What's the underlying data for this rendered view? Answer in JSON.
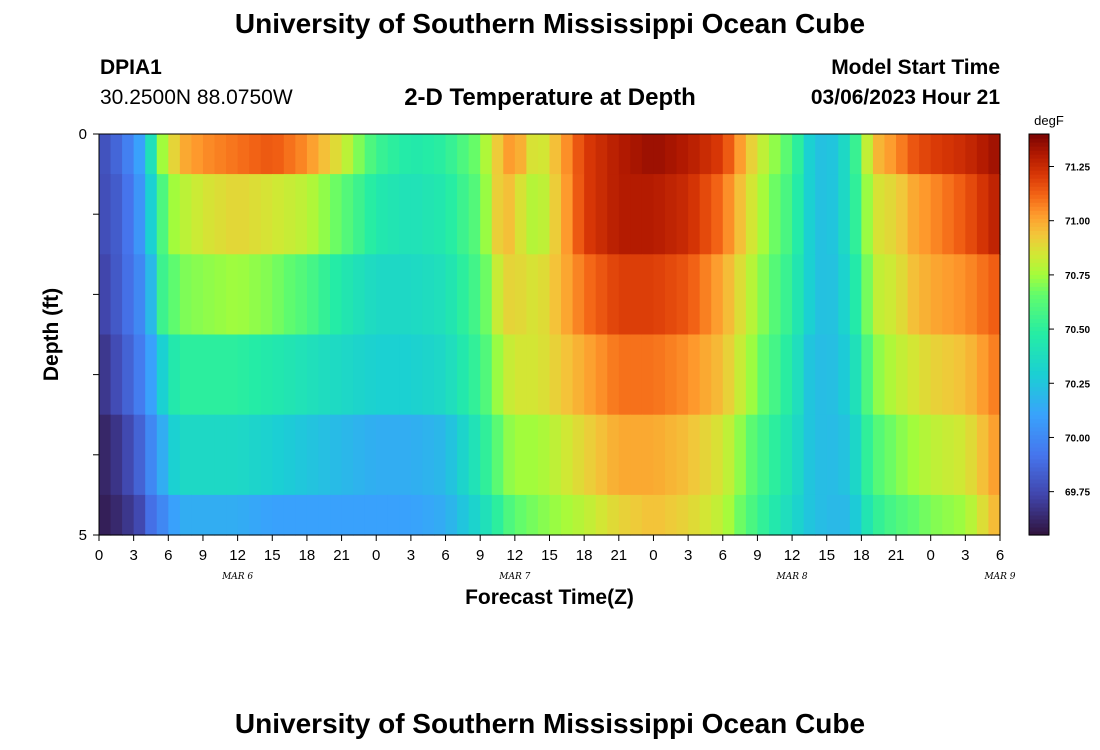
{
  "header": {
    "title": "University of Southern Mississippi Ocean Cube",
    "station_id": "DPIA1",
    "station_coords": "30.2500N  88.0750W",
    "plot_title": "2-D Temperature at Depth",
    "model_start_label": "Model Start Time",
    "model_start_value": "03/06/2023 Hour 21"
  },
  "footer": {
    "title": "University of Southern Mississippi Ocean Cube"
  },
  "chart_data": {
    "type": "heatmap",
    "title": "2-D Temperature at Depth",
    "xlabel": "Forecast Time(Z)",
    "ylabel": "Depth (ft)",
    "y_ticks": [
      "0",
      "5"
    ],
    "ylim": [
      0,
      5
    ],
    "x_tick_labels": [
      "0",
      "3",
      "6",
      "9",
      "12",
      "15",
      "18",
      "21",
      "0",
      "3",
      "6",
      "9",
      "12",
      "15",
      "18",
      "21",
      "0",
      "3",
      "6",
      "9",
      "12",
      "15",
      "18",
      "21",
      "0",
      "3",
      "6"
    ],
    "day_labels": [
      {
        "label": "MAR 6",
        "hour": 12
      },
      {
        "label": "MAR 7",
        "hour": 36
      },
      {
        "label": "MAR 8",
        "hour": 60
      },
      {
        "label": "MAR 9",
        "hour": 78
      }
    ],
    "x_hours_total": 78,
    "depth_levels": 5,
    "colorbar": {
      "unit": "degF",
      "ticks": [
        "69.75",
        "70.00",
        "70.25",
        "70.50",
        "70.75",
        "71.00",
        "71.25"
      ],
      "range": [
        69.55,
        71.4
      ]
    },
    "series": [
      {
        "hours": [
          0,
          2,
          3.5,
          4.5,
          5.5,
          6.5,
          7.5,
          9,
          12,
          15,
          18,
          21,
          24,
          27,
          30,
          33,
          35,
          36,
          38,
          42,
          45,
          48,
          51,
          54,
          57,
          60,
          61.5,
          63,
          65,
          67,
          69,
          70.5,
          72,
          75,
          78
        ],
        "values": [
          69.75,
          69.9,
          70.1,
          70.4,
          70.75,
          70.9,
          71.0,
          71.05,
          71.1,
          71.15,
          71.05,
          70.85,
          70.55,
          70.45,
          70.5,
          70.7,
          71.0,
          71.05,
          70.8,
          71.2,
          71.3,
          71.35,
          71.3,
          71.2,
          70.85,
          70.6,
          70.3,
          70.2,
          70.4,
          70.95,
          71.05,
          71.15,
          71.2,
          71.25,
          71.35
        ]
      },
      {
        "hours": [
          0,
          2,
          3.5,
          4.5,
          5.5,
          6.5,
          7.5,
          9,
          12,
          15,
          18,
          21,
          24,
          27,
          30,
          33,
          35,
          36,
          38,
          42,
          45,
          48,
          51,
          54,
          57,
          60,
          61.5,
          63,
          65,
          67,
          69,
          70.5,
          72,
          75,
          78
        ],
        "values": [
          69.75,
          69.85,
          70.05,
          70.3,
          70.6,
          70.75,
          70.8,
          70.85,
          70.9,
          70.85,
          70.8,
          70.65,
          70.45,
          70.4,
          70.45,
          70.65,
          71.0,
          70.9,
          70.75,
          71.2,
          71.3,
          71.3,
          71.25,
          71.1,
          70.8,
          70.55,
          70.3,
          70.2,
          70.4,
          70.85,
          70.9,
          71.0,
          71.05,
          71.15,
          71.3
        ]
      },
      {
        "hours": [
          0,
          2,
          3.5,
          4.5,
          5.5,
          6.5,
          7.5,
          9,
          12,
          15,
          18,
          21,
          24,
          27,
          30,
          33,
          35,
          36,
          38,
          42,
          45,
          48,
          51,
          54,
          57,
          60,
          61.5,
          63,
          65,
          67,
          69,
          70.5,
          72,
          75,
          78
        ],
        "values": [
          69.7,
          69.85,
          70.0,
          70.2,
          70.55,
          70.65,
          70.7,
          70.72,
          70.75,
          70.7,
          70.6,
          70.45,
          70.35,
          70.35,
          70.4,
          70.6,
          70.9,
          70.9,
          70.85,
          71.1,
          71.2,
          71.2,
          71.15,
          71.0,
          70.75,
          70.5,
          70.3,
          70.2,
          70.35,
          70.8,
          70.85,
          70.95,
          71.0,
          71.05,
          71.15
        ]
      },
      {
        "hours": [
          0,
          2,
          3.5,
          4.5,
          5.5,
          6.5,
          7.5,
          9,
          12,
          15,
          18,
          21,
          24,
          27,
          30,
          33,
          35,
          36,
          38,
          42,
          45,
          48,
          51,
          54,
          57,
          60,
          61.5,
          63,
          65,
          67,
          69,
          70.5,
          72,
          75,
          78
        ],
        "values": [
          69.65,
          69.8,
          69.95,
          70.1,
          70.3,
          70.45,
          70.5,
          70.5,
          70.5,
          70.45,
          70.4,
          70.35,
          70.3,
          70.3,
          70.35,
          70.55,
          70.8,
          70.85,
          70.85,
          71.0,
          71.1,
          71.1,
          71.05,
          70.95,
          70.7,
          70.45,
          70.25,
          70.2,
          70.3,
          70.7,
          70.8,
          70.85,
          70.9,
          70.95,
          71.1
        ]
      },
      {
        "hours": [
          0,
          2,
          3.5,
          4.5,
          5.5,
          6.5,
          7.5,
          9,
          12,
          15,
          18,
          21,
          24,
          27,
          30,
          33,
          35,
          36,
          38,
          42,
          45,
          48,
          51,
          54,
          57,
          60,
          61.5,
          63,
          65,
          67,
          69,
          70.5,
          72,
          75,
          78
        ],
        "values": [
          69.6,
          69.7,
          69.85,
          70.0,
          70.15,
          70.3,
          70.35,
          70.35,
          70.35,
          70.3,
          70.25,
          70.2,
          70.15,
          70.15,
          70.2,
          70.45,
          70.7,
          70.75,
          70.75,
          70.9,
          71.0,
          71.0,
          70.95,
          70.85,
          70.6,
          70.4,
          70.25,
          70.2,
          70.25,
          70.6,
          70.7,
          70.75,
          70.8,
          70.85,
          71.05
        ]
      },
      {
        "hours": [
          0,
          2,
          3.5,
          4.5,
          5.5,
          6.5,
          7.5,
          9,
          12,
          15,
          18,
          21,
          24,
          27,
          30,
          33,
          35,
          36,
          38,
          42,
          45,
          48,
          51,
          54,
          57,
          60,
          61.5,
          63,
          65,
          67,
          69,
          70.5,
          72,
          75,
          78
        ],
        "values": [
          69.58,
          69.65,
          69.75,
          69.9,
          70.0,
          70.1,
          70.15,
          70.15,
          70.15,
          70.1,
          70.1,
          70.1,
          70.1,
          70.1,
          70.15,
          70.35,
          70.55,
          70.65,
          70.7,
          70.8,
          70.9,
          70.95,
          70.9,
          70.8,
          70.55,
          70.35,
          70.25,
          70.2,
          70.2,
          70.5,
          70.6,
          70.65,
          70.7,
          70.75,
          71.0
        ]
      }
    ]
  }
}
